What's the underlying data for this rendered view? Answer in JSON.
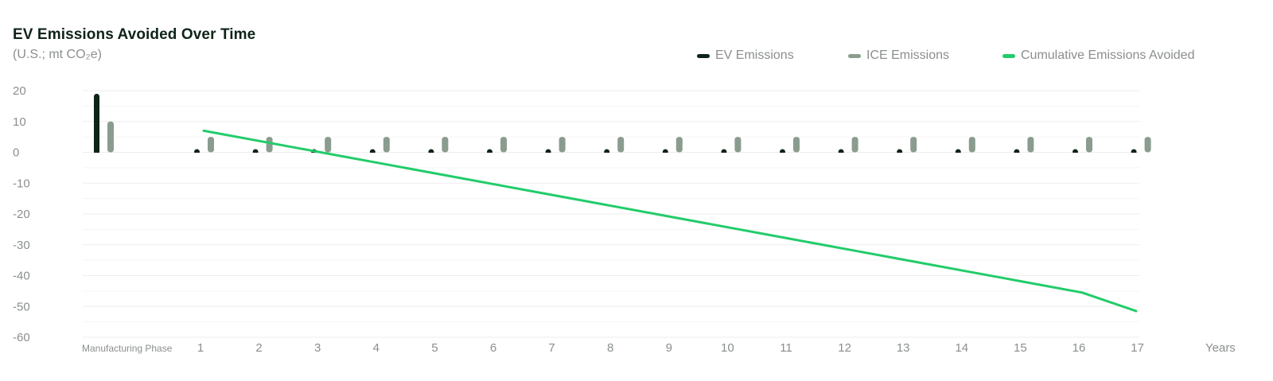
{
  "header": {
    "title": "EV Emissions Avoided Over Time",
    "subtitle": "(U.S.; mt CO₂e)"
  },
  "legend": {
    "items": [
      {
        "label": "EV Emissions",
        "color": "#0e2416"
      },
      {
        "label": "ICE Emissions",
        "color": "#8a9c8e"
      },
      {
        "label": "Cumulative Emissions Avoided",
        "color": "#22cc6a"
      }
    ]
  },
  "chart_data": {
    "type": "bar",
    "categories": [
      "Manufacturing Phase",
      "1",
      "2",
      "3",
      "4",
      "5",
      "6",
      "7",
      "8",
      "9",
      "10",
      "11",
      "12",
      "13",
      "14",
      "15",
      "16",
      "17"
    ],
    "xlabel": "Years",
    "ylabel": "",
    "ylim": [
      -60,
      20
    ],
    "yticks": [
      20,
      10,
      0,
      -10,
      -20,
      -30,
      -40,
      -50,
      -60
    ],
    "grid": true,
    "legend_position": "top-right",
    "series": [
      {
        "name": "EV Emissions",
        "type": "bar",
        "color": "#0e2416",
        "values": [
          19,
          0.8,
          0.8,
          0.8,
          0.8,
          0.8,
          0.8,
          0.8,
          0.8,
          0.8,
          0.8,
          0.8,
          0.8,
          0.8,
          0.8,
          0.8,
          0.8,
          0.8
        ]
      },
      {
        "name": "ICE Emissions",
        "type": "bar",
        "color": "#8a9c8e",
        "values": [
          10,
          5,
          5,
          5,
          5,
          5,
          5,
          5,
          5,
          5,
          5,
          5,
          5,
          5,
          5,
          5,
          5,
          5
        ]
      },
      {
        "name": "Cumulative Emissions Avoided",
        "type": "line",
        "color": "#22cc6a",
        "values": [
          null,
          7,
          3.5,
          0,
          -3.5,
          -7,
          -10.5,
          -14,
          -17.5,
          -21,
          -24.5,
          -28,
          -31.5,
          -35,
          -38.5,
          -42,
          -45.5,
          -51.5
        ]
      }
    ]
  }
}
